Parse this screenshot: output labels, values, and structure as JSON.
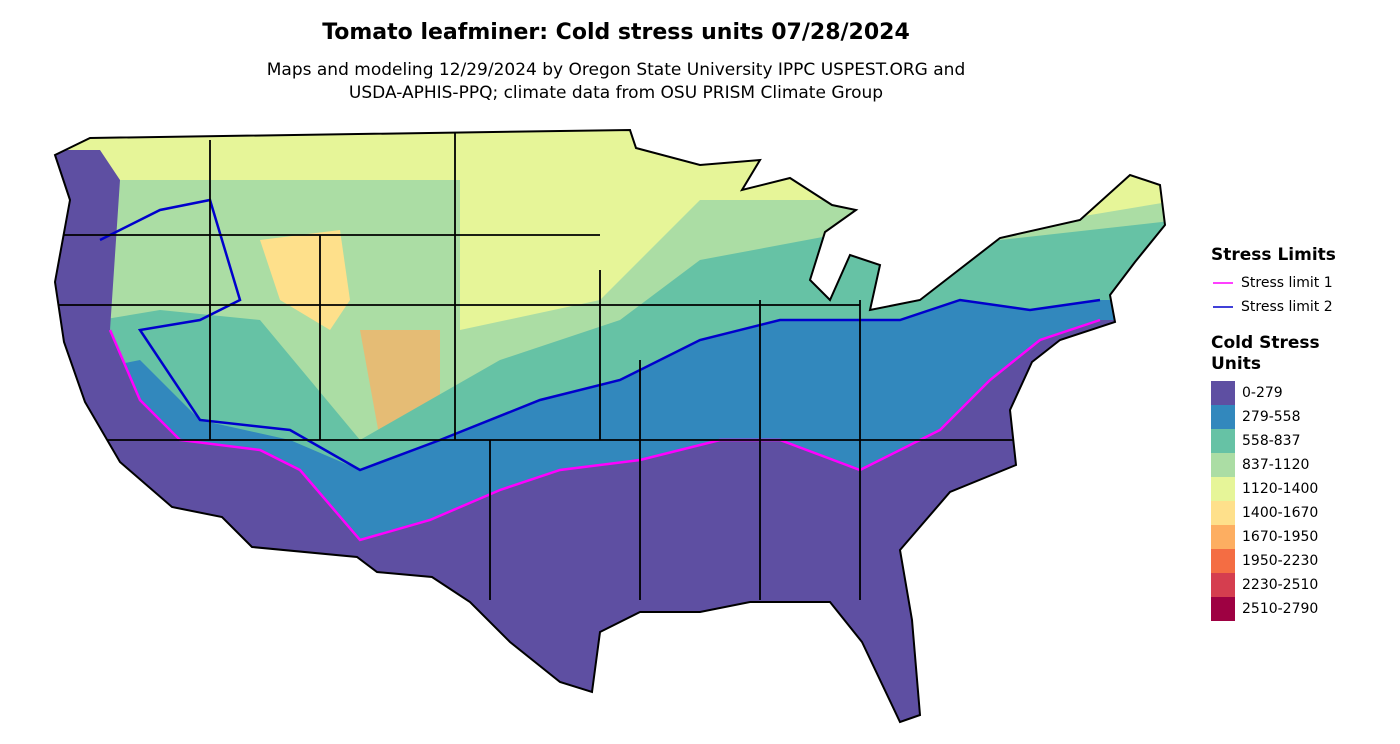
{
  "header": {
    "title": "Tomato leafminer: Cold stress units 07/28/2024",
    "subtitle": [
      "Maps and modeling 12/29/2024 by Oregon State University IPPC USPEST.ORG and",
      "USDA-APHIS-PPQ; climate data from OSU PRISM Climate Group"
    ]
  },
  "legend": {
    "lines": {
      "title": "Stress Limits",
      "items": [
        {
          "label": "Stress limit 1",
          "color": "#ff00ff"
        },
        {
          "label": "Stress limit 2",
          "color": "#0000cc"
        }
      ]
    },
    "fill": {
      "title": [
        "Cold Stress",
        "Units"
      ],
      "items": [
        {
          "label": "0-279",
          "color": "#5e4fa2"
        },
        {
          "label": "279-558",
          "color": "#3288bd"
        },
        {
          "label": "558-837",
          "color": "#66c2a5"
        },
        {
          "label": "837-1120",
          "color": "#abdda4"
        },
        {
          "label": "1120-1400",
          "color": "#e6f598"
        },
        {
          "label": "1400-1670",
          "color": "#fee08b"
        },
        {
          "label": "1670-1950",
          "color": "#fdae61"
        },
        {
          "label": "1950-2230",
          "color": "#f46d43"
        },
        {
          "label": "2230-2510",
          "color": "#d53e4f"
        },
        {
          "label": "2510-2790",
          "color": "#9e0142"
        }
      ]
    }
  }
}
